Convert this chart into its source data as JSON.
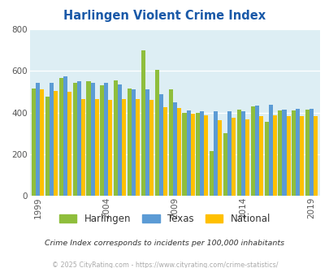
{
  "title": "Harlingen Violent Crime Index",
  "title_color": "#1959a8",
  "years": [
    1999,
    2000,
    2001,
    2002,
    2003,
    2004,
    2005,
    2006,
    2007,
    2008,
    2009,
    2010,
    2011,
    2012,
    2013,
    2014,
    2015,
    2016,
    2017,
    2018,
    2019
  ],
  "harlingen": [
    515,
    475,
    565,
    545,
    550,
    530,
    555,
    515,
    700,
    605,
    510,
    400,
    400,
    215,
    300,
    415,
    430,
    355,
    410,
    410,
    415
  ],
  "texas": [
    545,
    545,
    575,
    550,
    545,
    545,
    535,
    510,
    510,
    490,
    450,
    410,
    405,
    405,
    405,
    408,
    432,
    438,
    415,
    418,
    418
  ],
  "national": [
    510,
    505,
    500,
    465,
    465,
    460,
    465,
    465,
    462,
    425,
    420,
    395,
    388,
    365,
    375,
    368,
    384,
    386,
    383,
    383,
    383
  ],
  "harlingen_color": "#8fbe3c",
  "texas_color": "#5b9bd5",
  "national_color": "#ffc000",
  "bg_color": "#ddeef4",
  "ylim": [
    0,
    800
  ],
  "yticks": [
    0,
    200,
    400,
    600,
    800
  ],
  "xtick_years": [
    1999,
    2004,
    2009,
    2014,
    2019
  ],
  "subtitle": "Crime Index corresponds to incidents per 100,000 inhabitants",
  "footer": "© 2025 CityRating.com - https://www.cityrating.com/crime-statistics/",
  "subtitle_color": "#333333",
  "footer_color": "#aaaaaa",
  "legend_text_color": "#333333"
}
